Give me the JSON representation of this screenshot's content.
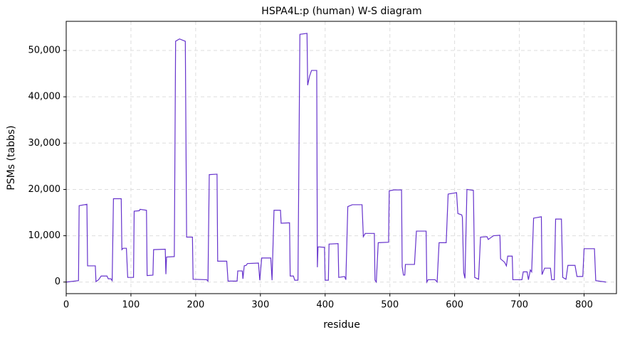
{
  "chart_data": {
    "type": "line",
    "title": "HSPA4L:p (human) W-S diagram",
    "x_label": "residue",
    "y_label": "PSMs (tabbs)",
    "x": [
      0,
      19,
      20,
      32,
      33,
      45,
      46,
      50,
      54,
      63,
      65,
      69,
      71,
      73,
      85,
      86,
      88,
      93,
      95,
      104,
      105,
      113,
      114,
      124,
      125,
      134,
      135,
      153,
      154,
      155,
      167,
      169,
      175,
      184,
      186,
      195,
      196,
      217,
      219,
      221,
      233,
      234,
      248,
      250,
      264,
      265,
      272,
      273,
      275,
      278,
      280,
      297,
      299,
      302,
      316,
      318,
      321,
      331,
      332,
      345,
      346,
      351,
      353,
      358,
      361,
      372,
      373,
      376,
      379,
      387,
      388,
      389,
      399,
      400,
      405,
      406,
      420,
      421,
      430,
      432,
      435,
      442,
      457,
      459,
      462,
      476,
      477,
      479,
      482,
      498,
      499,
      506,
      518,
      519,
      521,
      523,
      524,
      538,
      541,
      556,
      557,
      559,
      570,
      573,
      576,
      587,
      590,
      603,
      605,
      611,
      612,
      614,
      616,
      619,
      629,
      631,
      637,
      640,
      650,
      652,
      656,
      660,
      670,
      671,
      677,
      680,
      682,
      689,
      690,
      704,
      706,
      712,
      714,
      717,
      719,
      722,
      734,
      735,
      739,
      748,
      750,
      754,
      756,
      765,
      767,
      772,
      775,
      786,
      789,
      798,
      800,
      816,
      818,
      834
    ],
    "series": [
      {
        "name": "PSMs",
        "color": "#6633cc",
        "values": [
          0,
          300,
          16500,
          16800,
          3500,
          3500,
          100,
          500,
          1300,
          1300,
          700,
          700,
          300,
          18000,
          18000,
          7000,
          7300,
          7300,
          1000,
          1000,
          15300,
          15400,
          15700,
          15500,
          1400,
          1500,
          7000,
          7100,
          1700,
          5400,
          5500,
          52000,
          52500,
          52000,
          9700,
          9700,
          600,
          500,
          200,
          23200,
          23300,
          4500,
          4500,
          200,
          200,
          2400,
          2400,
          700,
          3500,
          3600,
          4000,
          4100,
          400,
          5200,
          5200,
          400,
          15500,
          15500,
          12700,
          12800,
          1300,
          1300,
          400,
          400,
          53500,
          53700,
          42500,
          44500,
          45700,
          45700,
          3200,
          7600,
          7500,
          400,
          400,
          8200,
          8300,
          1000,
          1200,
          500,
          16300,
          16700,
          16700,
          9800,
          10500,
          10500,
          400,
          0,
          8500,
          8600,
          19700,
          19900,
          19900,
          3300,
          1500,
          1500,
          3800,
          3800,
          11000,
          11000,
          0,
          500,
          500,
          0,
          8500,
          8500,
          19000,
          19300,
          14800,
          14500,
          14000,
          2000,
          800,
          20000,
          19800,
          1000,
          600,
          9700,
          9800,
          9200,
          9600,
          10000,
          10100,
          5000,
          4300,
          3500,
          5600,
          5600,
          500,
          500,
          2200,
          2200,
          500,
          2600,
          2200,
          13800,
          14100,
          1600,
          3000,
          3000,
          500,
          500,
          13600,
          13600,
          1000,
          600,
          3600,
          3600,
          1200,
          1200,
          7200,
          7200,
          300,
          0
        ]
      }
    ],
    "xlim": [
      0,
      850
    ],
    "ylim": [
      -2500,
      56300
    ],
    "xticks": [
      0,
      100,
      200,
      300,
      400,
      500,
      600,
      700,
      800
    ],
    "yticks": [
      0,
      {
        "value": 10000,
        "label": "10,000"
      },
      {
        "value": 20000,
        "label": "20,000"
      },
      {
        "value": 30000,
        "label": "30,000"
      },
      {
        "value": 40000,
        "label": "40,000"
      },
      {
        "value": 50000,
        "label": "50,000"
      }
    ],
    "grid": true
  }
}
